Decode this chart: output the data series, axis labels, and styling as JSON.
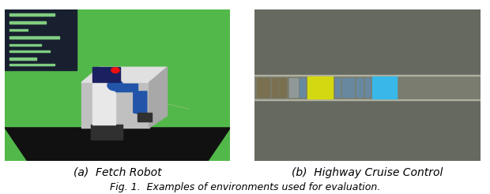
{
  "fig_width": 6.2,
  "fig_height": 2.46,
  "dpi": 100,
  "background_color": "#ffffff",
  "caption_a": "(a)  Fetch Robot",
  "caption_b": "(b)  Highway Cruise Control",
  "fig_caption": "Fig. 1.  Examples of environments used for evaluation.",
  "caption_fontsize": 10,
  "fig_caption_fontsize": 9,
  "right_panel_bg": "#666960",
  "road_color": "#7a7d6e",
  "road_line_color": "#b0b0a0",
  "car_yellow_color": "#d4d810",
  "car_blue_color": "#38b8e8",
  "car_dark_color": "#7a7050",
  "car_gray_color": "#8090a0",
  "car_steel_color": "#6888a0"
}
